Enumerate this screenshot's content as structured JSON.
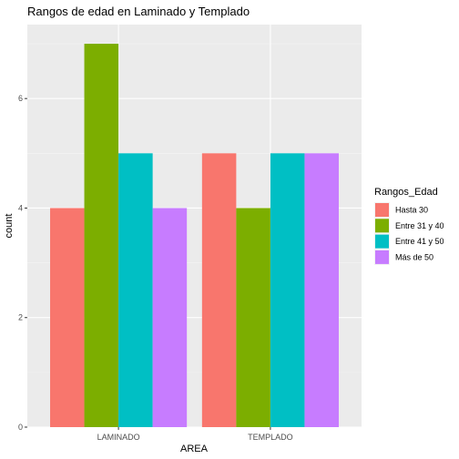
{
  "chart_data": {
    "type": "bar",
    "title": "Rangos de edad en Laminado y Templado",
    "xlabel": "AREA",
    "ylabel": "count",
    "categories": [
      "LAMINADO",
      "TEMPLADO"
    ],
    "series": [
      {
        "name": "Hasta 30",
        "values": [
          4,
          5
        ],
        "color": "#F8766D"
      },
      {
        "name": "Entre 31 y 40",
        "values": [
          7,
          4
        ],
        "color": "#7CAE00"
      },
      {
        "name": "Entre 41 y 50",
        "values": [
          5,
          5
        ],
        "color": "#00BFC4"
      },
      {
        "name": "Más de 50",
        "values": [
          4,
          5
        ],
        "color": "#C77CFF"
      }
    ],
    "ylim": [
      0,
      7.35
    ],
    "yticks": [
      0,
      2,
      4,
      6
    ],
    "legend": {
      "title": "Rangos_Edad",
      "position": "right"
    },
    "grid": true,
    "panel_background": "#EBEBEB"
  }
}
